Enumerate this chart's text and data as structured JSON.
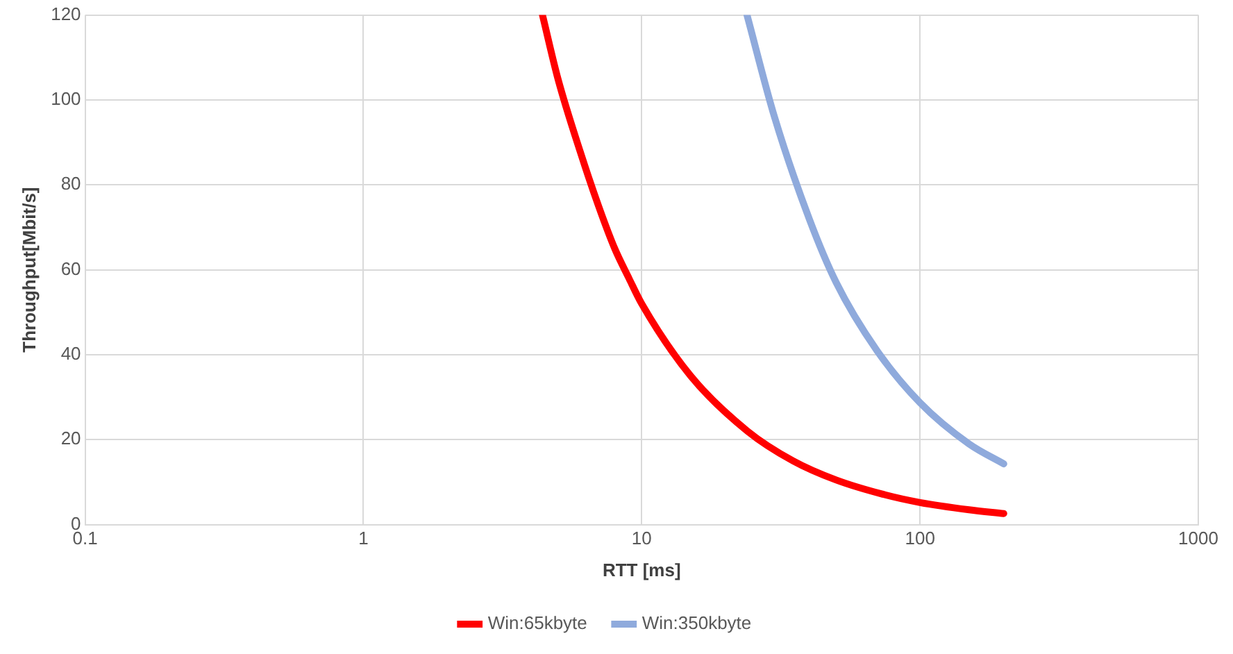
{
  "chart_data": {
    "type": "line",
    "xlabel": "RTT [ms]",
    "ylabel": "Throughput[Mbit/s]",
    "log": "x",
    "xlim": [
      0.1,
      1000
    ],
    "xticks": [
      0.1,
      1,
      10,
      100,
      1000
    ],
    "ylim": [
      0,
      120
    ],
    "yticks": [
      0,
      20,
      40,
      60,
      80,
      100,
      120
    ],
    "grid": true,
    "legend": "bottom",
    "marker": "none",
    "line_style": "solid",
    "series": [
      {
        "name": "Win:65kbyte",
        "color": "#ff0000",
        "x": [
          4.4,
          5,
          6,
          7,
          8,
          9,
          10,
          15,
          24,
          35,
          50,
          75,
          100,
          150,
          200
        ],
        "values": [
          120,
          105,
          88,
          75,
          65,
          58,
          52,
          35,
          22,
          15,
          10.5,
          7,
          5.2,
          3.5,
          2.6
        ]
      },
      {
        "name": "Win:350kbyte",
        "color": "#8faadc",
        "x": [
          23.9,
          30,
          40,
          50,
          70,
          100,
          150,
          200
        ],
        "values": [
          120,
          96,
          72,
          57,
          41,
          28.7,
          19,
          14.3
        ]
      }
    ]
  }
}
